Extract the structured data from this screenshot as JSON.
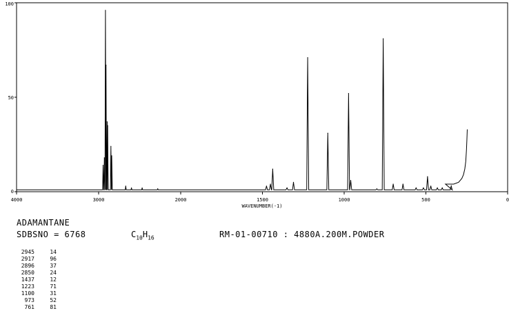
{
  "chart_data": {
    "type": "line",
    "title": "",
    "xlabel": "WAVENUMBER(-1)",
    "ylabel": "",
    "xlim": [
      4000,
      0
    ],
    "ylim": [
      0,
      100
    ],
    "xticks": [
      "4000",
      "3000",
      "2000",
      "1500",
      "1000",
      "500",
      "0"
    ],
    "yticks": [
      "100",
      "50",
      "0"
    ],
    "x_axis": "reciprocal-wavenumber",
    "grid": false,
    "baseline": 1,
    "series": [
      {
        "peaks": [
          {
            "x": 2945,
            "y": 14
          },
          {
            "x": 2930,
            "y": 18
          },
          {
            "x": 2917,
            "y": 96
          },
          {
            "x": 2910,
            "y": 67
          },
          {
            "x": 2896,
            "y": 37
          },
          {
            "x": 2890,
            "y": 35
          },
          {
            "x": 2850,
            "y": 24
          },
          {
            "x": 2840,
            "y": 19
          },
          {
            "x": 2670,
            "y": 3
          },
          {
            "x": 2600,
            "y": 2
          },
          {
            "x": 2470,
            "y": 2
          },
          {
            "x": 2280,
            "y": 1.5
          },
          {
            "x": 1475,
            "y": 3
          },
          {
            "x": 1451,
            "y": 4
          },
          {
            "x": 1437,
            "y": 12
          },
          {
            "x": 1350,
            "y": 2
          },
          {
            "x": 1310,
            "y": 5
          },
          {
            "x": 1223,
            "y": 71
          },
          {
            "x": 1100,
            "y": 31
          },
          {
            "x": 973,
            "y": 52
          },
          {
            "x": 960,
            "y": 6
          },
          {
            "x": 800,
            "y": 1.5
          },
          {
            "x": 761,
            "y": 81
          },
          {
            "x": 700,
            "y": 4
          },
          {
            "x": 640,
            "y": 4
          },
          {
            "x": 560,
            "y": 2
          },
          {
            "x": 515,
            "y": 2
          },
          {
            "x": 490,
            "y": 8
          },
          {
            "x": 470,
            "y": 3
          },
          {
            "x": 430,
            "y": 2
          },
          {
            "x": 400,
            "y": 2
          },
          {
            "x": 345,
            "y": 3
          }
        ],
        "end_rise": [
          {
            "x": 380,
            "y": 4
          },
          {
            "x": 330,
            "y": 4
          },
          {
            "x": 300,
            "y": 5
          },
          {
            "x": 280,
            "y": 7
          },
          {
            "x": 270,
            "y": 9
          },
          {
            "x": 262,
            "y": 12
          },
          {
            "x": 256,
            "y": 16
          },
          {
            "x": 252,
            "y": 22
          },
          {
            "x": 249,
            "y": 28
          },
          {
            "x": 247,
            "y": 33
          }
        ]
      }
    ]
  },
  "compound": {
    "name": "ADAMANTANE",
    "sdbs_label": "SDBSNO = 6768",
    "formula_c": "C",
    "formula_c_count": "10",
    "formula_h": "H",
    "formula_h_count": "16",
    "measurement": "RM-01-00710 : 4880A.200M.POWDER"
  },
  "peak_table": [
    {
      "wn": "2945",
      "t": "14"
    },
    {
      "wn": "2917",
      "t": "96"
    },
    {
      "wn": "2896",
      "t": "37"
    },
    {
      "wn": "2850",
      "t": "24"
    },
    {
      "wn": "1437",
      "t": "12"
    },
    {
      "wn": "1223",
      "t": "71"
    },
    {
      "wn": "1100",
      "t": "31"
    },
    {
      "wn": "973",
      "t": "52"
    },
    {
      "wn": "761",
      "t": "81"
    }
  ]
}
